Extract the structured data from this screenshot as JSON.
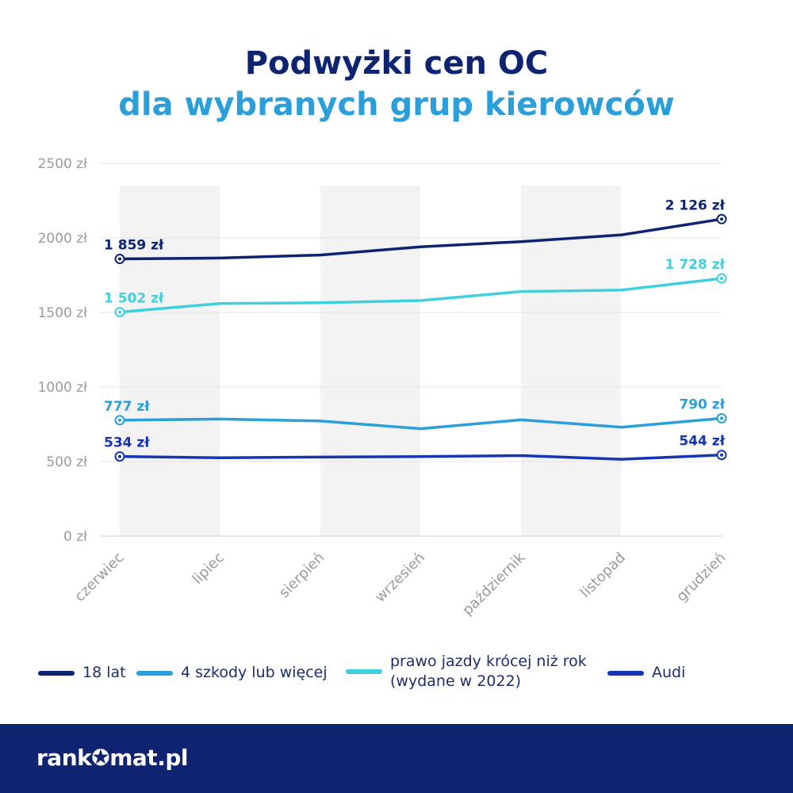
{
  "title": {
    "line1": "Podwyżki cen OC",
    "line2": "dla wybranych grup kierowców"
  },
  "colors": {
    "title_line1": "#0e2470",
    "title_line2": "#2b9fd9",
    "grid": "#e6e6e6",
    "band": "#f3f3f3",
    "axis_text": "#9a9a9a",
    "footer_bg": "#0e2470"
  },
  "chart_data": {
    "type": "line",
    "categories": [
      "czerwiec",
      "lipiec",
      "sierpień",
      "wrzesień",
      "październik",
      "listopad",
      "grudzień"
    ],
    "ylim": [
      0,
      2500
    ],
    "yticks": [
      0,
      500,
      1000,
      1500,
      2000,
      2500
    ],
    "ytick_labels": [
      "0 zł",
      "500 zł",
      "1000 zł",
      "1500 zł",
      "2000 zł",
      "2500 zł"
    ],
    "grid": true,
    "legend_position": "bottom",
    "series": [
      {
        "name": "18 lat",
        "color": "#0e2470",
        "values": [
          1859,
          1865,
          1885,
          1940,
          1975,
          2020,
          2126
        ],
        "start_label": "1 859 zł",
        "end_label": "2 126 zł"
      },
      {
        "name": "4 szkody lub więcej",
        "color": "#2b9fd9",
        "values": [
          777,
          785,
          772,
          720,
          780,
          730,
          790
        ],
        "start_label": "777 zł",
        "end_label": "790 zł"
      },
      {
        "name": "prawo jazdy krócej niż rok\n(wydane w 2022)",
        "color": "#3fd0e0",
        "values": [
          1502,
          1560,
          1565,
          1580,
          1640,
          1650,
          1728
        ],
        "start_label": "1 502 zł",
        "end_label": "1 728 zł"
      },
      {
        "name": "Audi",
        "color": "#1535b5",
        "values": [
          534,
          525,
          530,
          533,
          540,
          515,
          544
        ],
        "start_label": "534 zł",
        "end_label": "544 zł"
      }
    ]
  },
  "footer": {
    "logo_pre": "rank",
    "logo_star": "✪",
    "logo_post": "mat.pl"
  }
}
